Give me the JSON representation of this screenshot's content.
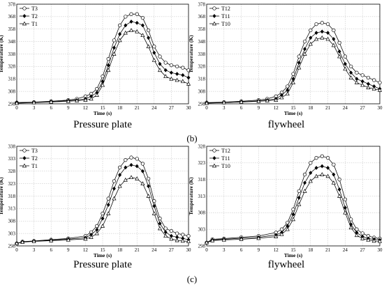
{
  "captions": {
    "b_left": "Pressure plate",
    "b_right": "flywheel",
    "b_label": "(b)",
    "c_left": "Pressure plate",
    "c_right": "flywheel",
    "c_label": "(c)"
  },
  "chart_data": [
    {
      "type": "line",
      "panel": "b-left",
      "xlabel": "Time (s)",
      "ylabel": "Temperature (K)",
      "xlim": [
        0,
        30
      ],
      "ylim": [
        298,
        378
      ],
      "xticks": [
        0,
        3,
        6,
        9,
        12,
        15,
        18,
        21,
        24,
        27,
        30
      ],
      "yticks": [
        298,
        308,
        318,
        328,
        338,
        348,
        358,
        368,
        378
      ],
      "grid": true,
      "legend_position": "top-left",
      "series": [
        {
          "name": "T3",
          "marker": "circle",
          "x": [
            0,
            3,
            6,
            9,
            10.5,
            12,
            13,
            14,
            15,
            16,
            17,
            18,
            19,
            20,
            21,
            22,
            23,
            24,
            25,
            26,
            27,
            28,
            29,
            30
          ],
          "y": [
            299,
            299.3,
            300,
            301,
            302,
            304,
            306,
            310,
            320,
            334,
            349,
            361,
            368,
            370,
            370,
            367,
            357,
            344,
            336,
            331,
            329,
            328,
            327,
            325
          ]
        },
        {
          "name": "T2",
          "marker": "diamond",
          "x": [
            0,
            3,
            6,
            9,
            10.5,
            12,
            13,
            14,
            15,
            16,
            17,
            18,
            19,
            20,
            21,
            22,
            23,
            24,
            25,
            26,
            27,
            28,
            29,
            30
          ],
          "y": [
            299,
            299.2,
            299.7,
            300.5,
            301,
            302,
            304,
            307,
            316,
            329,
            343,
            354,
            361,
            364,
            363,
            361,
            351,
            339,
            330,
            325,
            323,
            322,
            321,
            319
          ]
        },
        {
          "name": "T1",
          "marker": "triangle",
          "x": [
            0,
            3,
            6,
            9,
            10.5,
            12,
            13,
            14,
            15,
            16,
            17,
            18,
            19,
            20,
            21,
            22,
            23,
            24,
            25,
            26,
            27,
            28,
            29,
            30
          ],
          "y": [
            298.5,
            299,
            299.5,
            300,
            300.5,
            301,
            302,
            305,
            313,
            325,
            338,
            349,
            355,
            357,
            356,
            353,
            344,
            333,
            325,
            320,
            318,
            317,
            316,
            314
          ]
        }
      ]
    },
    {
      "type": "line",
      "panel": "b-right",
      "xlabel": "Time (s)",
      "ylabel": "Temperature (K)",
      "xlim": [
        0,
        30
      ],
      "ylim": [
        298,
        378
      ],
      "xticks": [
        0,
        3,
        6,
        9,
        12,
        15,
        18,
        21,
        24,
        27,
        30
      ],
      "yticks": [
        298,
        308,
        318,
        328,
        338,
        348,
        358,
        368,
        378
      ],
      "grid": true,
      "legend_position": "top-left",
      "series": [
        {
          "name": "T12",
          "marker": "circle",
          "x": [
            0,
            3,
            6,
            9,
            10.5,
            12,
            13,
            14,
            15,
            16,
            17,
            18,
            19,
            20,
            21,
            22,
            23,
            24,
            25,
            26,
            27,
            28,
            29,
            30
          ],
          "y": [
            299,
            299.3,
            300,
            301,
            302,
            304,
            307,
            312,
            322,
            336,
            348,
            357,
            362,
            363,
            362,
            357,
            347,
            336,
            328,
            323,
            321,
            319,
            317,
            315
          ]
        },
        {
          "name": "T11",
          "marker": "diamond",
          "x": [
            0,
            3,
            6,
            9,
            10.5,
            12,
            13,
            14,
            15,
            16,
            17,
            18,
            19,
            20,
            21,
            22,
            23,
            24,
            25,
            26,
            27,
            28,
            29,
            30
          ],
          "y": [
            298.8,
            299,
            299.6,
            300.3,
            301,
            302,
            305,
            309,
            318,
            331,
            342,
            351,
            355,
            356,
            355,
            350,
            340,
            330,
            323,
            318,
            316,
            314,
            312,
            310
          ]
        },
        {
          "name": "T10",
          "marker": "triangle",
          "x": [
            0,
            3,
            6,
            9,
            10.5,
            12,
            13,
            14,
            15,
            16,
            17,
            18,
            19,
            20,
            21,
            22,
            23,
            24,
            25,
            26,
            27,
            28,
            29,
            30
          ],
          "y": [
            298.5,
            299,
            299.4,
            300,
            300.5,
            301,
            303,
            306,
            315,
            327,
            338,
            346,
            350,
            351,
            350,
            345,
            336,
            326,
            319,
            315,
            313,
            311,
            310,
            309
          ]
        }
      ]
    },
    {
      "type": "line",
      "panel": "c-left",
      "xlabel": "Time (s)",
      "ylabel": "Temperature (K)",
      "xlim": [
        0,
        30
      ],
      "ylim": [
        298,
        338
      ],
      "xticks": [
        0,
        3,
        6,
        9,
        12,
        15,
        18,
        21,
        24,
        27,
        30
      ],
      "yticks": [
        298,
        303,
        308,
        313,
        318,
        323,
        328,
        333,
        338
      ],
      "grid": true,
      "legend_position": "top-left",
      "series": [
        {
          "name": "T3",
          "marker": "circle",
          "x": [
            0,
            1,
            3,
            6,
            9,
            12,
            13,
            14,
            15,
            16,
            17,
            18,
            19,
            20,
            21,
            22,
            23,
            24,
            25,
            26,
            27,
            28,
            29,
            30
          ],
          "y": [
            299,
            299.7,
            300,
            300.5,
            301,
            302,
            303.5,
            306,
            311,
            317,
            324,
            329.5,
            332.5,
            333.5,
            333,
            331,
            325,
            316,
            309,
            305,
            304,
            303,
            302.5,
            302
          ]
        },
        {
          "name": "T2",
          "marker": "diamond",
          "x": [
            0,
            1,
            3,
            6,
            9,
            12,
            13,
            14,
            15,
            16,
            17,
            18,
            19,
            20,
            21,
            22,
            23,
            24,
            25,
            26,
            27,
            28,
            29,
            30
          ],
          "y": [
            299,
            299.6,
            299.9,
            300.3,
            300.7,
            301.3,
            302.5,
            304.5,
            309,
            314.5,
            321,
            326.5,
            329.5,
            330.5,
            330,
            328,
            322,
            314,
            307,
            303.5,
            302,
            301.5,
            301,
            300.5
          ]
        },
        {
          "name": "T1",
          "marker": "triangle",
          "x": [
            0,
            1,
            3,
            6,
            9,
            12,
            13,
            14,
            15,
            16,
            17,
            18,
            19,
            20,
            21,
            22,
            23,
            24,
            25,
            26,
            27,
            28,
            29,
            30
          ],
          "y": [
            299,
            299.5,
            299.8,
            300.1,
            300.4,
            300.8,
            301.5,
            303,
            306,
            311,
            317,
            322,
            324.5,
            325.5,
            325,
            323,
            318,
            311,
            305,
            302,
            300.8,
            300.2,
            300,
            299.8
          ]
        }
      ]
    },
    {
      "type": "line",
      "panel": "c-right",
      "xlabel": "Time (s)",
      "ylabel": "Temperature (K)",
      "xlim": [
        0,
        30
      ],
      "ylim": [
        298,
        328
      ],
      "xticks": [
        0,
        3,
        6,
        9,
        12,
        15,
        18,
        21,
        24,
        27,
        30
      ],
      "yticks": [
        298,
        303,
        308,
        313,
        318,
        323,
        328
      ],
      "grid": true,
      "legend_position": "top-left",
      "series": [
        {
          "name": "T12",
          "marker": "circle",
          "x": [
            0,
            1,
            3,
            6,
            9,
            12,
            13,
            14,
            15,
            16,
            17,
            18,
            19,
            20,
            21,
            22,
            23,
            24,
            25,
            26,
            27,
            28,
            29,
            30
          ],
          "y": [
            299,
            300,
            300.2,
            300.6,
            301,
            302,
            303,
            305,
            309,
            314.5,
            319.5,
            323,
            324.5,
            325,
            324.5,
            322.5,
            318,
            312,
            306,
            303,
            301.8,
            301,
            300.5,
            300.2
          ]
        },
        {
          "name": "T11",
          "marker": "diamond",
          "x": [
            0,
            1,
            3,
            6,
            9,
            12,
            13,
            14,
            15,
            16,
            17,
            18,
            19,
            20,
            21,
            22,
            23,
            24,
            25,
            26,
            27,
            28,
            29,
            30
          ],
          "y": [
            299,
            299.8,
            300,
            300.3,
            300.6,
            301.3,
            302,
            304,
            307.5,
            312.5,
            317,
            320,
            321.5,
            322,
            321.5,
            319.5,
            315,
            309.5,
            304.5,
            302,
            300.8,
            300.2,
            300,
            299.8
          ]
        },
        {
          "name": "T10",
          "marker": "triangle",
          "x": [
            0,
            1,
            3,
            6,
            9,
            12,
            13,
            14,
            15,
            16,
            17,
            18,
            19,
            20,
            21,
            22,
            23,
            24,
            25,
            26,
            27,
            28,
            29,
            30
          ],
          "y": [
            299,
            299.6,
            299.8,
            300,
            300.3,
            300.8,
            301.5,
            303,
            306,
            310.5,
            314.5,
            317.5,
            319,
            319.5,
            319,
            317,
            313,
            308,
            303.5,
            301.2,
            300.2,
            299.8,
            299.5,
            299.4
          ]
        }
      ]
    }
  ]
}
